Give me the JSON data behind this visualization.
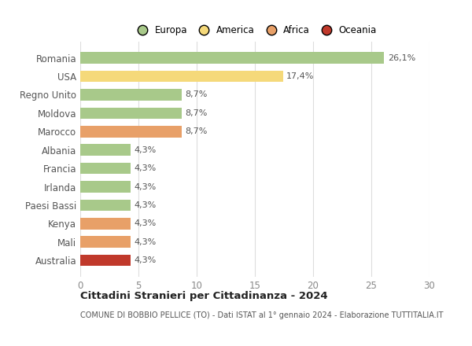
{
  "categories": [
    "Australia",
    "Mali",
    "Kenya",
    "Paesi Bassi",
    "Irlanda",
    "Francia",
    "Albania",
    "Marocco",
    "Moldova",
    "Regno Unito",
    "USA",
    "Romania"
  ],
  "values": [
    4.3,
    4.3,
    4.3,
    4.3,
    4.3,
    4.3,
    4.3,
    8.7,
    8.7,
    8.7,
    17.4,
    26.1
  ],
  "labels": [
    "4,3%",
    "4,3%",
    "4,3%",
    "4,3%",
    "4,3%",
    "4,3%",
    "4,3%",
    "8,7%",
    "8,7%",
    "8,7%",
    "17,4%",
    "26,1%"
  ],
  "colors": [
    "#c0392b",
    "#e8a068",
    "#e8a068",
    "#a8c98a",
    "#a8c98a",
    "#a8c98a",
    "#a8c98a",
    "#e8a068",
    "#a8c98a",
    "#a8c98a",
    "#f5d97a",
    "#a8c98a"
  ],
  "legend": [
    {
      "label": "Europa",
      "color": "#a8c98a"
    },
    {
      "label": "America",
      "color": "#f5d97a"
    },
    {
      "label": "Africa",
      "color": "#e8a068"
    },
    {
      "label": "Oceania",
      "color": "#c0392b"
    }
  ],
  "xlim": [
    0,
    30
  ],
  "xticks": [
    0,
    5,
    10,
    15,
    20,
    25,
    30
  ],
  "title": "Cittadini Stranieri per Cittadinanza - 2024",
  "subtitle": "COMUNE DI BOBBIO PELLICE (TO) - Dati ISTAT al 1° gennaio 2024 - Elaborazione TUTTITALIA.IT",
  "background_color": "#ffffff",
  "grid_color": "#dddddd",
  "bar_height": 0.62
}
